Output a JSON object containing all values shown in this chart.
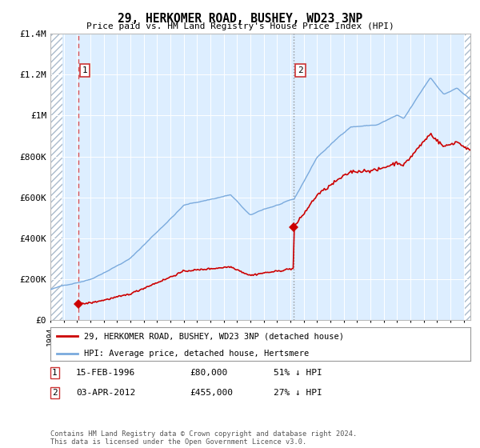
{
  "title": "29, HERKOMER ROAD, BUSHEY, WD23 3NP",
  "subtitle": "Price paid vs. HM Land Registry's House Price Index (HPI)",
  "sale1_price": 80000,
  "sale2_price": 455000,
  "legend_line1": "29, HERKOMER ROAD, BUSHEY, WD23 3NP (detached house)",
  "legend_line2": "HPI: Average price, detached house, Hertsmere",
  "ann1_num": "1",
  "ann1_date": "15-FEB-1996",
  "ann1_price": "£80,000",
  "ann1_pct": "51% ↓ HPI",
  "ann2_num": "2",
  "ann2_date": "03-APR-2012",
  "ann2_price": "£455,000",
  "ann2_pct": "27% ↓ HPI",
  "footer": "Contains HM Land Registry data © Crown copyright and database right 2024.\nThis data is licensed under the Open Government Licence v3.0.",
  "ylim": [
    0,
    1400000
  ],
  "xlim_start": 1994.0,
  "xlim_end": 2025.5,
  "hpi_color": "#7aaadd",
  "price_color": "#cc0000",
  "bg_color": "#ddeeff",
  "hatch_color": "#aabbcc",
  "sale1_vline_color": "#dd4444",
  "sale2_vline_color": "#888888",
  "yticks": [
    0,
    200000,
    400000,
    600000,
    800000,
    1000000,
    1200000,
    1400000
  ],
  "ylabels": [
    "£0",
    "£200K",
    "£400K",
    "£600K",
    "£800K",
    "£1M",
    "£1.2M",
    "£1.4M"
  ]
}
